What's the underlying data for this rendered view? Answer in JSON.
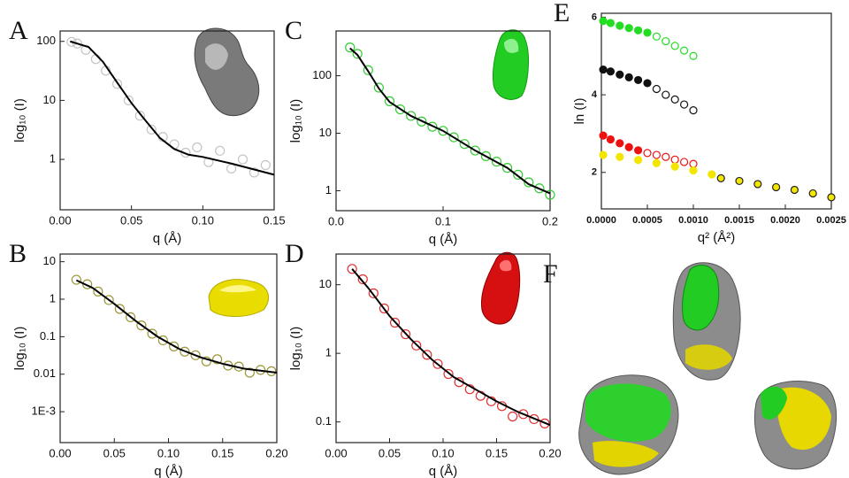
{
  "chart_data": [
    {
      "type": "scatter",
      "panel": "A",
      "y_label": "log₁₀ (I)",
      "x_label": "q (Å)",
      "y_scale": "log",
      "xlim": [
        0,
        0.15
      ],
      "xticks": [
        {
          "value": 0,
          "label": "0.00"
        },
        {
          "value": 0.05,
          "label": "0.05"
        },
        {
          "value": 0.1,
          "label": "0.10"
        },
        {
          "value": 0.15,
          "label": "0.15"
        }
      ],
      "ylim": [
        0.14,
        150
      ],
      "yticks": [
        1,
        10,
        100
      ],
      "series": [
        {
          "marker": "open",
          "color": "#c4c4c4",
          "x": [
            0.008,
            0.012,
            0.018,
            0.025,
            0.032,
            0.04,
            0.048,
            0.056,
            0.064,
            0.072,
            0.08,
            0.088,
            0.096,
            0.104,
            0.112,
            0.12,
            0.128,
            0.136,
            0.144
          ],
          "values": [
            98,
            92,
            72,
            50,
            32,
            19,
            10,
            5.5,
            3.2,
            2.4,
            1.8,
            1.3,
            1.6,
            0.9,
            1.4,
            0.7,
            1.0,
            0.6,
            0.8
          ]
        },
        {
          "marker": "line",
          "color": "#000000",
          "x": [
            0.007,
            0.02,
            0.03,
            0.04,
            0.05,
            0.06,
            0.07,
            0.08,
            0.09,
            0.1,
            0.12,
            0.15
          ],
          "values": [
            100,
            80,
            45,
            20,
            9,
            4.5,
            2.3,
            1.5,
            1.2,
            1.1,
            0.85,
            0.55
          ]
        }
      ]
    },
    {
      "type": "scatter",
      "panel": "B",
      "y_label": "log₁₀ (I)",
      "x_label": "q (Å)",
      "y_scale": "log",
      "xlim": [
        0,
        0.2
      ],
      "xticks": [
        {
          "value": 0,
          "label": "0.00"
        },
        {
          "value": 0.05,
          "label": "0.05"
        },
        {
          "value": 0.1,
          "label": "0.10"
        },
        {
          "value": 0.15,
          "label": "0.15"
        },
        {
          "value": 0.2,
          "label": "0.20"
        }
      ],
      "ylim": [
        0.00015,
        16
      ],
      "yticks": [
        {
          "value": 0.001,
          "label": "1E-3"
        },
        0.01,
        0.1,
        1,
        10
      ],
      "series": [
        {
          "marker": "open",
          "color": "#9c9636",
          "x": [
            0.015,
            0.025,
            0.035,
            0.045,
            0.055,
            0.065,
            0.075,
            0.085,
            0.095,
            0.105,
            0.115,
            0.125,
            0.135,
            0.145,
            0.155,
            0.165,
            0.175,
            0.185,
            0.195
          ],
          "values": [
            3.3,
            2.5,
            1.6,
            0.95,
            0.55,
            0.33,
            0.2,
            0.12,
            0.08,
            0.055,
            0.04,
            0.032,
            0.022,
            0.025,
            0.017,
            0.016,
            0.011,
            0.013,
            0.012
          ]
        },
        {
          "marker": "line",
          "color": "#000000",
          "x": [
            0.015,
            0.03,
            0.05,
            0.07,
            0.09,
            0.11,
            0.13,
            0.15,
            0.17,
            0.2
          ],
          "values": [
            3.2,
            2.0,
            0.75,
            0.26,
            0.1,
            0.047,
            0.028,
            0.019,
            0.014,
            0.011
          ]
        }
      ]
    },
    {
      "type": "scatter",
      "panel": "C",
      "y_label": "log₁₀ (I)",
      "x_label": "q (Å)",
      "y_scale": "log",
      "xlim": [
        0,
        0.2
      ],
      "xticks": [
        {
          "value": 0,
          "label": "0.0"
        },
        {
          "value": 0.1,
          "label": "0.1"
        },
        {
          "value": 0.2,
          "label": "0.2"
        }
      ],
      "ylim": [
        0.45,
        600
      ],
      "yticks": [
        1,
        10,
        100
      ],
      "series": [
        {
          "marker": "open",
          "color": "#33cc33",
          "x": [
            0.013,
            0.02,
            0.03,
            0.04,
            0.05,
            0.06,
            0.07,
            0.08,
            0.09,
            0.1,
            0.11,
            0.12,
            0.13,
            0.14,
            0.15,
            0.16,
            0.17,
            0.18,
            0.19,
            0.2
          ],
          "values": [
            310,
            240,
            125,
            62,
            36,
            26,
            20,
            16,
            13,
            11,
            8.5,
            6.5,
            5,
            4,
            3.2,
            2.5,
            1.9,
            1.4,
            1.1,
            0.85
          ]
        },
        {
          "marker": "line",
          "color": "#000000",
          "x": [
            0.013,
            0.02,
            0.03,
            0.04,
            0.05,
            0.07,
            0.1,
            0.13,
            0.16,
            0.18,
            0.2
          ],
          "values": [
            300,
            230,
            120,
            60,
            35,
            20,
            11,
            5,
            2.5,
            1.3,
            0.9
          ]
        }
      ]
    },
    {
      "type": "scatter",
      "panel": "D",
      "y_label": "log₁₀ (I)",
      "x_label": "q (Å)",
      "y_scale": "log",
      "xlim": [
        0,
        0.2
      ],
      "xticks": [
        {
          "value": 0,
          "label": "0.00"
        },
        {
          "value": 0.05,
          "label": "0.05"
        },
        {
          "value": 0.1,
          "label": "0.10"
        },
        {
          "value": 0.15,
          "label": "0.15"
        },
        {
          "value": 0.2,
          "label": "0.20"
        }
      ],
      "ylim": [
        0.05,
        28
      ],
      "yticks": [
        0.1,
        1,
        10
      ],
      "series": [
        {
          "marker": "open",
          "color": "#e03030",
          "x": [
            0.015,
            0.025,
            0.035,
            0.045,
            0.055,
            0.065,
            0.075,
            0.085,
            0.095,
            0.105,
            0.115,
            0.125,
            0.135,
            0.145,
            0.155,
            0.165,
            0.175,
            0.185,
            0.195
          ],
          "values": [
            17,
            12,
            7.5,
            4.5,
            2.8,
            1.9,
            1.3,
            0.95,
            0.7,
            0.5,
            0.38,
            0.3,
            0.24,
            0.2,
            0.17,
            0.12,
            0.13,
            0.11,
            0.095
          ]
        },
        {
          "marker": "line",
          "color": "#000000",
          "x": [
            0.015,
            0.03,
            0.05,
            0.07,
            0.09,
            0.11,
            0.13,
            0.15,
            0.17,
            0.2
          ],
          "values": [
            17,
            9,
            3.5,
            1.6,
            0.8,
            0.45,
            0.3,
            0.2,
            0.14,
            0.09
          ]
        }
      ]
    },
    {
      "type": "scatter",
      "panel": "E",
      "y_label": "ln (I)",
      "x_label": "q² (Å²)",
      "y_scale": "linear",
      "xlim": [
        0,
        0.0025
      ],
      "xticks": [
        {
          "value": 0,
          "label": "0.0000"
        },
        {
          "value": 0.0005,
          "label": "0.0005"
        },
        {
          "value": 0.001,
          "label": "0.0010"
        },
        {
          "value": 0.0015,
          "label": "0.0015"
        },
        {
          "value": 0.002,
          "label": "0.0020"
        },
        {
          "value": 0.0025,
          "label": "0.0025"
        }
      ],
      "ylim": [
        1.06,
        6.1
      ],
      "yticks": [
        2,
        4,
        6
      ],
      "series": [
        {
          "marker": "filled",
          "color": "#22dd22",
          "x": [
            2e-05,
            0.0001,
            0.0002,
            0.0003,
            0.0004,
            0.0005
          ],
          "values": [
            5.9,
            5.85,
            5.78,
            5.72,
            5.66,
            5.6
          ]
        },
        {
          "marker": "open",
          "color": "#22dd22",
          "x": [
            0.0006,
            0.0007,
            0.0008,
            0.0009,
            0.001
          ],
          "values": [
            5.5,
            5.38,
            5.26,
            5.14,
            5.0
          ]
        },
        {
          "marker": "filled",
          "color": "#111111",
          "x": [
            2e-05,
            0.0001,
            0.0002,
            0.0003,
            0.0004,
            0.0005
          ],
          "values": [
            4.65,
            4.6,
            4.52,
            4.45,
            4.38,
            4.3
          ]
        },
        {
          "marker": "open",
          "color": "#111111",
          "x": [
            0.0006,
            0.0007,
            0.0008,
            0.0009,
            0.001
          ],
          "values": [
            4.15,
            4.0,
            3.88,
            3.75,
            3.6
          ]
        },
        {
          "marker": "filled",
          "color": "#ee1111",
          "x": [
            2e-05,
            0.0001,
            0.0002,
            0.0003,
            0.0004
          ],
          "values": [
            2.95,
            2.85,
            2.75,
            2.65,
            2.57
          ]
        },
        {
          "marker": "open",
          "color": "#ee1111",
          "x": [
            0.0005,
            0.0006,
            0.0007,
            0.0008,
            0.0009,
            0.001
          ],
          "values": [
            2.5,
            2.45,
            2.4,
            2.33,
            2.27,
            2.22
          ]
        },
        {
          "marker": "filled",
          "color": "#f2e600",
          "x": [
            2e-05,
            0.0002,
            0.0004,
            0.0006,
            0.0008,
            0.001,
            0.0012
          ],
          "values": [
            2.45,
            2.4,
            2.32,
            2.24,
            2.15,
            2.05,
            1.95
          ]
        },
        {
          "marker": "edged",
          "color": "#f2e600",
          "x": [
            0.0013,
            0.0015,
            0.0017,
            0.0019,
            0.0021,
            0.0023,
            0.0025
          ],
          "values": [
            1.85,
            1.78,
            1.7,
            1.62,
            1.55,
            1.46,
            1.36
          ]
        }
      ]
    }
  ],
  "panel_f": {
    "label": "F"
  }
}
